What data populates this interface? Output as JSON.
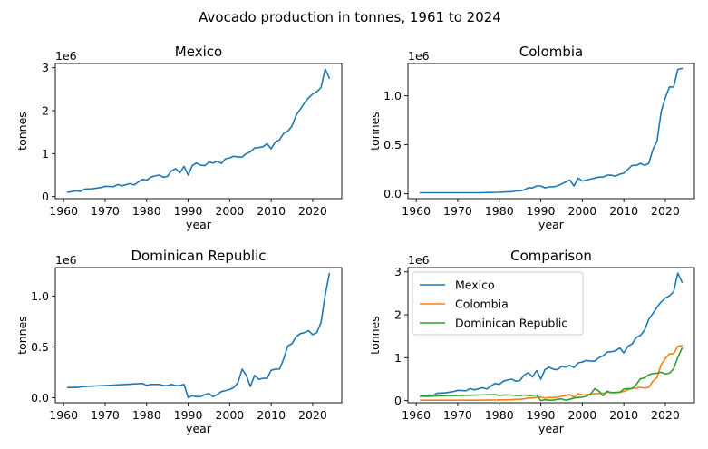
{
  "suptitle": "Avocado production in tonnes, 1961 to 2024",
  "colors": {
    "Mexico": "#1f77b4",
    "Colombia": "#ff7f0e",
    "Dominican Republic": "#2ca02c"
  },
  "chart_data": [
    {
      "type": "line",
      "title": "Mexico",
      "xlabel": "year",
      "ylabel": "tonnes",
      "y_scale_label": "1e6",
      "xlim": [
        1958,
        2027
      ],
      "ylim": [
        -0.05,
        3.1
      ],
      "xticks": [
        1960,
        1970,
        1980,
        1990,
        2000,
        2010,
        2020
      ],
      "yticks": [
        0,
        1,
        2,
        3
      ],
      "grid": false,
      "series": [
        {
          "name": "Mexico",
          "color": "#1f77b4",
          "x": [
            1961,
            1963,
            1964,
            1965,
            1967,
            1969,
            1970,
            1972,
            1973,
            1974,
            1976,
            1977,
            1978,
            1979,
            1980,
            1981,
            1982,
            1983,
            1984,
            1985,
            1986,
            1987,
            1988,
            1989,
            1990,
            1991,
            1992,
            1993,
            1994,
            1995,
            1996,
            1997,
            1998,
            1999,
            2000,
            2001,
            2002,
            2003,
            2004,
            2005,
            2006,
            2007,
            2008,
            2009,
            2010,
            2011,
            2012,
            2013,
            2014,
            2015,
            2016,
            2017,
            2018,
            2019,
            2020,
            2021,
            2022,
            2023,
            2024
          ],
          "y": [
            0.1,
            0.13,
            0.12,
            0.17,
            0.18,
            0.21,
            0.24,
            0.23,
            0.28,
            0.25,
            0.3,
            0.27,
            0.34,
            0.4,
            0.38,
            0.45,
            0.48,
            0.5,
            0.45,
            0.47,
            0.6,
            0.65,
            0.55,
            0.7,
            0.5,
            0.72,
            0.78,
            0.73,
            0.72,
            0.8,
            0.78,
            0.82,
            0.77,
            0.88,
            0.9,
            0.94,
            0.92,
            0.92,
            1.0,
            1.04,
            1.13,
            1.14,
            1.16,
            1.23,
            1.11,
            1.27,
            1.32,
            1.47,
            1.52,
            1.64,
            1.89,
            2.03,
            2.18,
            2.3,
            2.39,
            2.44,
            2.54,
            2.97,
            2.76
          ]
        }
      ]
    },
    {
      "type": "line",
      "title": "Colombia",
      "xlabel": "year",
      "ylabel": "tonnes",
      "y_scale_label": "1e6",
      "xlim": [
        1958,
        2027
      ],
      "ylim": [
        -0.05,
        1.33
      ],
      "xticks": [
        1960,
        1970,
        1980,
        1990,
        2000,
        2010,
        2020
      ],
      "yticks": [
        0.0,
        0.5,
        1.0
      ],
      "ytick_labels": [
        "0.0",
        "0.5",
        "1.0"
      ],
      "grid": false,
      "series": [
        {
          "name": "Colombia",
          "color": "#1f77b4",
          "x": [
            1961,
            1965,
            1970,
            1975,
            1980,
            1982,
            1983,
            1984,
            1985,
            1986,
            1987,
            1988,
            1989,
            1990,
            1991,
            1992,
            1993,
            1994,
            1995,
            1996,
            1997,
            1998,
            1999,
            2000,
            2001,
            2002,
            2003,
            2004,
            2005,
            2006,
            2007,
            2008,
            2009,
            2010,
            2011,
            2012,
            2013,
            2014,
            2015,
            2016,
            2017,
            2018,
            2019,
            2020,
            2021,
            2022,
            2023,
            2024
          ],
          "y": [
            0.01,
            0.01,
            0.01,
            0.01,
            0.015,
            0.02,
            0.02,
            0.03,
            0.03,
            0.04,
            0.06,
            0.06,
            0.08,
            0.08,
            0.06,
            0.07,
            0.07,
            0.08,
            0.1,
            0.12,
            0.14,
            0.08,
            0.16,
            0.13,
            0.14,
            0.15,
            0.16,
            0.17,
            0.17,
            0.19,
            0.19,
            0.18,
            0.2,
            0.21,
            0.25,
            0.29,
            0.29,
            0.31,
            0.29,
            0.31,
            0.45,
            0.54,
            0.84,
            0.98,
            1.09,
            1.09,
            1.27,
            1.28
          ]
        }
      ]
    },
    {
      "type": "line",
      "title": "Dominican Republic",
      "xlabel": "year",
      "ylabel": "tonnes",
      "y_scale_label": "1e6",
      "xlim": [
        1958,
        2027
      ],
      "ylim": [
        -0.05,
        1.28
      ],
      "xticks": [
        1960,
        1970,
        1980,
        1990,
        2000,
        2010,
        2020
      ],
      "yticks": [
        0.0,
        0.5,
        1.0
      ],
      "ytick_labels": [
        "0.0",
        "0.5",
        "1.0"
      ],
      "grid": false,
      "series": [
        {
          "name": "Dominican Republic",
          "color": "#1f77b4",
          "x": [
            1961,
            1963,
            1965,
            1970,
            1975,
            1979,
            1980,
            1981,
            1983,
            1984,
            1985,
            1986,
            1987,
            1988,
            1989,
            1990,
            1991,
            1992,
            1993,
            1994,
            1995,
            1996,
            1997,
            1998,
            1999,
            2000,
            2001,
            2002,
            2003,
            2004,
            2005,
            2006,
            2007,
            2008,
            2009,
            2010,
            2011,
            2012,
            2013,
            2014,
            2015,
            2016,
            2017,
            2018,
            2019,
            2020,
            2021,
            2022,
            2023,
            2024
          ],
          "y": [
            0.1,
            0.1,
            0.11,
            0.12,
            0.13,
            0.14,
            0.12,
            0.13,
            0.13,
            0.12,
            0.12,
            0.13,
            0.12,
            0.12,
            0.13,
            0.0,
            0.02,
            0.01,
            0.01,
            0.03,
            0.04,
            0.01,
            0.03,
            0.06,
            0.07,
            0.08,
            0.1,
            0.15,
            0.28,
            0.22,
            0.11,
            0.22,
            0.18,
            0.19,
            0.19,
            0.27,
            0.28,
            0.28,
            0.38,
            0.51,
            0.53,
            0.6,
            0.63,
            0.64,
            0.66,
            0.62,
            0.64,
            0.74,
            1.01,
            1.22
          ]
        }
      ]
    },
    {
      "type": "line",
      "title": "Comparison",
      "xlabel": "year",
      "ylabel": "tonnes",
      "y_scale_label": "1e6",
      "xlim": [
        1958,
        2027
      ],
      "ylim": [
        -0.05,
        3.1
      ],
      "xticks": [
        1960,
        1970,
        1980,
        1990,
        2000,
        2010,
        2020
      ],
      "yticks": [
        0,
        1,
        2,
        3
      ],
      "grid": false,
      "legend": "top-left",
      "series": [
        {
          "name": "Mexico",
          "color": "#1f77b4",
          "x": [
            1961,
            1963,
            1964,
            1965,
            1967,
            1969,
            1970,
            1972,
            1973,
            1974,
            1976,
            1977,
            1978,
            1979,
            1980,
            1981,
            1982,
            1983,
            1984,
            1985,
            1986,
            1987,
            1988,
            1989,
            1990,
            1991,
            1992,
            1993,
            1994,
            1995,
            1996,
            1997,
            1998,
            1999,
            2000,
            2001,
            2002,
            2003,
            2004,
            2005,
            2006,
            2007,
            2008,
            2009,
            2010,
            2011,
            2012,
            2013,
            2014,
            2015,
            2016,
            2017,
            2018,
            2019,
            2020,
            2021,
            2022,
            2023,
            2024
          ],
          "y": [
            0.1,
            0.13,
            0.12,
            0.17,
            0.18,
            0.21,
            0.24,
            0.23,
            0.28,
            0.25,
            0.3,
            0.27,
            0.34,
            0.4,
            0.38,
            0.45,
            0.48,
            0.5,
            0.45,
            0.47,
            0.6,
            0.65,
            0.55,
            0.7,
            0.5,
            0.72,
            0.78,
            0.73,
            0.72,
            0.8,
            0.78,
            0.82,
            0.77,
            0.88,
            0.9,
            0.94,
            0.92,
            0.92,
            1.0,
            1.04,
            1.13,
            1.14,
            1.16,
            1.23,
            1.11,
            1.27,
            1.32,
            1.47,
            1.52,
            1.64,
            1.89,
            2.03,
            2.18,
            2.3,
            2.39,
            2.44,
            2.54,
            2.97,
            2.76
          ]
        },
        {
          "name": "Colombia",
          "color": "#ff7f0e",
          "x": [
            1961,
            1965,
            1970,
            1975,
            1980,
            1982,
            1983,
            1984,
            1985,
            1986,
            1987,
            1988,
            1989,
            1990,
            1991,
            1992,
            1993,
            1994,
            1995,
            1996,
            1997,
            1998,
            1999,
            2000,
            2001,
            2002,
            2003,
            2004,
            2005,
            2006,
            2007,
            2008,
            2009,
            2010,
            2011,
            2012,
            2013,
            2014,
            2015,
            2016,
            2017,
            2018,
            2019,
            2020,
            2021,
            2022,
            2023,
            2024
          ],
          "y": [
            0.01,
            0.01,
            0.01,
            0.01,
            0.015,
            0.02,
            0.02,
            0.03,
            0.03,
            0.04,
            0.06,
            0.06,
            0.08,
            0.08,
            0.06,
            0.07,
            0.07,
            0.08,
            0.1,
            0.12,
            0.14,
            0.08,
            0.16,
            0.13,
            0.14,
            0.15,
            0.16,
            0.17,
            0.17,
            0.19,
            0.19,
            0.18,
            0.2,
            0.21,
            0.25,
            0.29,
            0.29,
            0.31,
            0.29,
            0.31,
            0.45,
            0.54,
            0.84,
            0.98,
            1.09,
            1.09,
            1.27,
            1.28
          ]
        },
        {
          "name": "Dominican Republic",
          "color": "#2ca02c",
          "x": [
            1961,
            1963,
            1965,
            1970,
            1975,
            1979,
            1980,
            1981,
            1983,
            1984,
            1985,
            1986,
            1987,
            1988,
            1989,
            1990,
            1991,
            1992,
            1993,
            1994,
            1995,
            1996,
            1997,
            1998,
            1999,
            2000,
            2001,
            2002,
            2003,
            2004,
            2005,
            2006,
            2007,
            2008,
            2009,
            2010,
            2011,
            2012,
            2013,
            2014,
            2015,
            2016,
            2017,
            2018,
            2019,
            2020,
            2021,
            2022,
            2023,
            2024
          ],
          "y": [
            0.1,
            0.1,
            0.11,
            0.12,
            0.13,
            0.14,
            0.12,
            0.13,
            0.13,
            0.12,
            0.12,
            0.13,
            0.12,
            0.12,
            0.13,
            0.0,
            0.02,
            0.01,
            0.01,
            0.03,
            0.04,
            0.01,
            0.03,
            0.06,
            0.07,
            0.08,
            0.1,
            0.15,
            0.28,
            0.22,
            0.11,
            0.22,
            0.18,
            0.19,
            0.19,
            0.27,
            0.28,
            0.28,
            0.38,
            0.51,
            0.53,
            0.6,
            0.63,
            0.64,
            0.66,
            0.62,
            0.64,
            0.74,
            1.01,
            1.22
          ]
        }
      ]
    }
  ]
}
